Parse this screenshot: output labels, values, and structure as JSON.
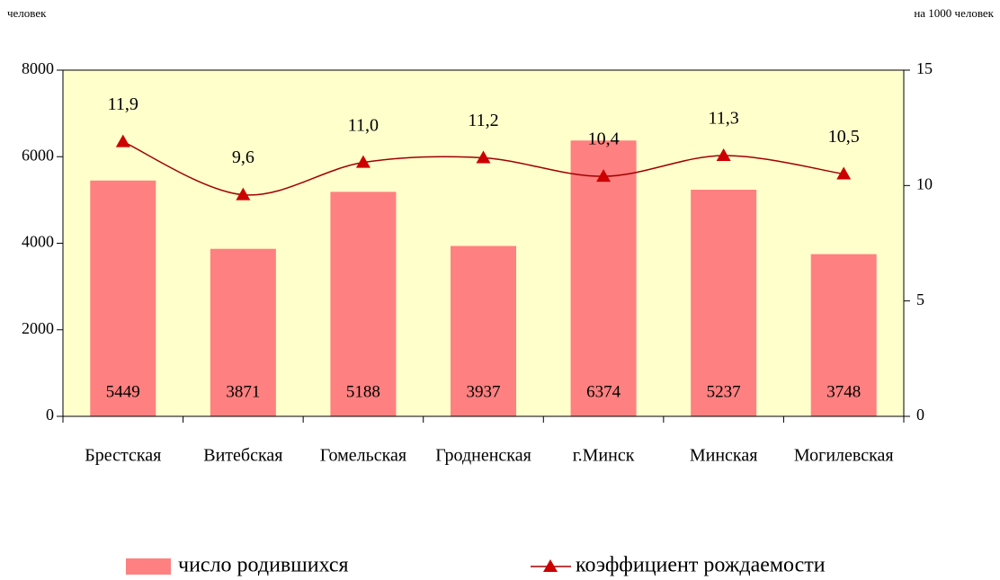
{
  "chart_data": {
    "type": "bar",
    "y_label": "человек",
    "y2_label": "на 1000 человек",
    "categories": [
      "Брестская",
      "Витебская",
      "Гомельская",
      "Гродненская",
      "г.Минск",
      "Минская",
      "Могилевская"
    ],
    "series": [
      {
        "name": "число родившихся",
        "type": "bar",
        "color": "#ff8080",
        "values": [
          5449,
          3871,
          5188,
          3937,
          6374,
          5237,
          3748
        ]
      },
      {
        "name": "коэффициент рождаемости",
        "type": "line",
        "axis": "y2",
        "color": "#a00000",
        "marker_color": "#cc0000",
        "values": [
          11.9,
          9.6,
          11.0,
          11.2,
          10.4,
          11.3,
          10.5
        ],
        "value_labels": [
          "11,9",
          "9,6",
          "11,0",
          "11,2",
          "10,4",
          "11,3",
          "10,5"
        ]
      }
    ],
    "ylim": [
      0,
      8000
    ],
    "yticks": [
      0,
      2000,
      4000,
      6000,
      8000
    ],
    "y2lim": [
      0,
      15
    ],
    "y2ticks": [
      0,
      5,
      10,
      15
    ],
    "plot_background": "#ffffcc",
    "legend": "bottom"
  }
}
